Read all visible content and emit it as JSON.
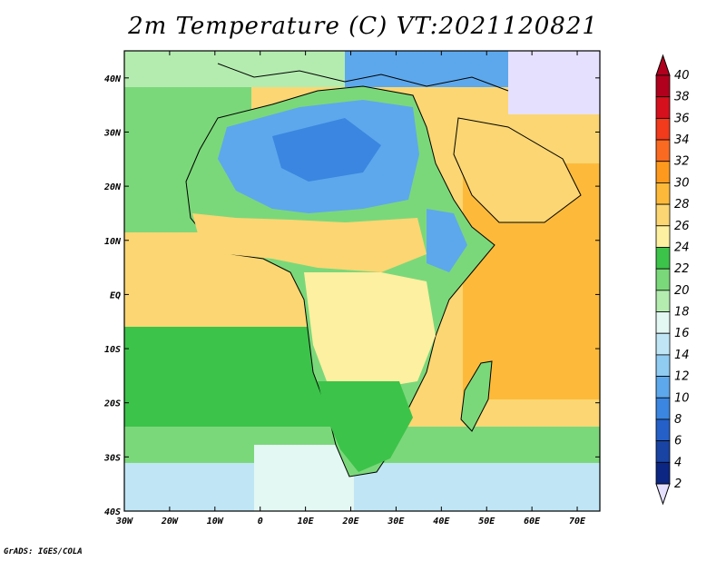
{
  "title": "2m Temperature (C) VT:2021120821",
  "credit": "GrADS: IGES/COLA",
  "map": {
    "lon_range": [
      -30,
      75
    ],
    "lat_range": [
      -40,
      45
    ],
    "lon_ticks": [
      {
        "value": -30,
        "label": "30W"
      },
      {
        "value": -20,
        "label": "20W"
      },
      {
        "value": -10,
        "label": "10W"
      },
      {
        "value": 0,
        "label": "0"
      },
      {
        "value": 10,
        "label": "10E"
      },
      {
        "value": 20,
        "label": "20E"
      },
      {
        "value": 30,
        "label": "30E"
      },
      {
        "value": 40,
        "label": "40E"
      },
      {
        "value": 50,
        "label": "50E"
      },
      {
        "value": 60,
        "label": "60E"
      },
      {
        "value": 70,
        "label": "70E"
      }
    ],
    "lat_ticks": [
      {
        "value": 40,
        "label": "40N"
      },
      {
        "value": 30,
        "label": "30N"
      },
      {
        "value": 20,
        "label": "20N"
      },
      {
        "value": 10,
        "label": "10N"
      },
      {
        "value": 0,
        "label": "EQ"
      },
      {
        "value": -10,
        "label": "10S"
      },
      {
        "value": -20,
        "label": "20S"
      },
      {
        "value": -30,
        "label": "30S"
      },
      {
        "value": -40,
        "label": "40S"
      }
    ]
  },
  "colorbar": {
    "labels": [
      "40",
      "38",
      "36",
      "34",
      "32",
      "30",
      "28",
      "26",
      "24",
      "22",
      "20",
      "18",
      "16",
      "14",
      "12",
      "10",
      "8",
      "6",
      "4",
      "2"
    ],
    "colors": [
      "#b0001e",
      "#d7101e",
      "#f23a1c",
      "#fb6a21",
      "#fd9a1e",
      "#fdba3a",
      "#fbd672",
      "#fdf0a0",
      "#3cc34a",
      "#7bd87a",
      "#b4ecb0",
      "#e3f7f3",
      "#c0e6f6",
      "#90cbf2",
      "#5da8ec",
      "#3a86e0",
      "#2560c8",
      "#1944a4",
      "#0c2684"
    ],
    "top_cap_color": "#b0001e",
    "bottom_cap_color": "#e6e0ff",
    "bottom_block_color": "#0a1a6e"
  }
}
